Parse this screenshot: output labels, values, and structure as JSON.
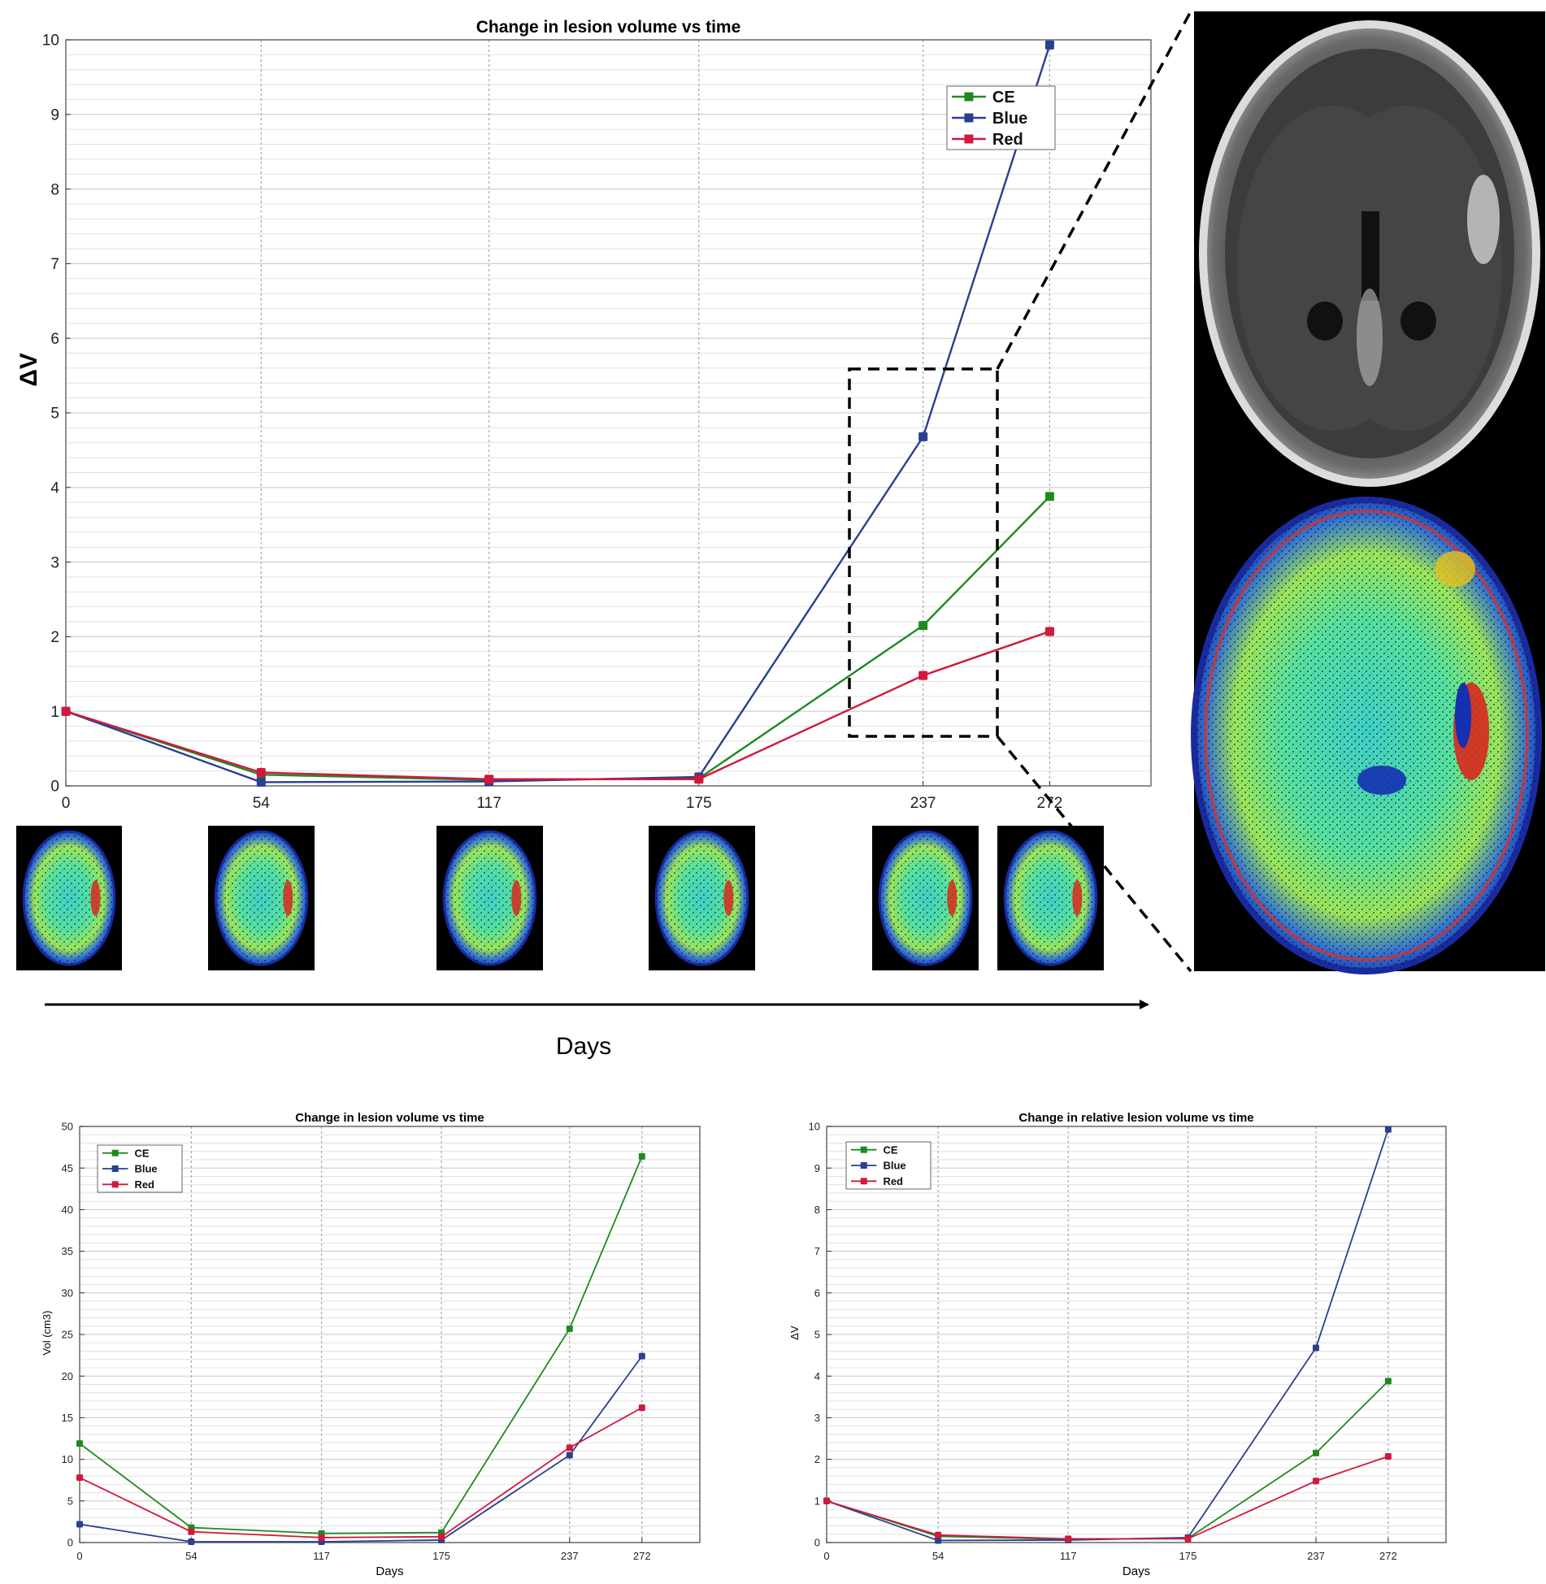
{
  "figure": {
    "timeline_label": "Days",
    "thumbnails_days": [
      0,
      54,
      117,
      175,
      237,
      272
    ]
  },
  "legend": {
    "entries": [
      "CE",
      "Blue",
      "Red"
    ]
  },
  "colors": {
    "CE": "#1e8a1e",
    "Blue": "#2a3f8f",
    "Red": "#d2183c",
    "grid": "#d0d0d0",
    "vgrid": "#a8a8a8"
  },
  "chart_data": [
    {
      "type": "line",
      "title": "Change in lesion volume vs time",
      "xlabel": "",
      "ylabel": "ΔV",
      "x": [
        0,
        54,
        117,
        175,
        237,
        272
      ],
      "xlim": [
        0,
        300
      ],
      "ylim": [
        0,
        10
      ],
      "yticks": [
        0,
        1,
        2,
        3,
        4,
        5,
        6,
        7,
        8,
        9,
        10
      ],
      "grid": true,
      "legend_position": "top-right",
      "series": [
        {
          "name": "CE",
          "values": [
            1.0,
            0.15,
            0.08,
            0.1,
            2.15,
            3.88
          ]
        },
        {
          "name": "Blue",
          "values": [
            1.0,
            0.05,
            0.06,
            0.12,
            4.68,
            9.93
          ]
        },
        {
          "name": "Red",
          "values": [
            1.0,
            0.18,
            0.09,
            0.09,
            1.48,
            2.07
          ]
        }
      ]
    },
    {
      "type": "line",
      "title": "Change in lesion volume vs time",
      "xlabel": "Days",
      "ylabel": "Vol (cm3)",
      "x": [
        0,
        54,
        117,
        175,
        237,
        272
      ],
      "xlim": [
        0,
        300
      ],
      "ylim": [
        0,
        50
      ],
      "yticks": [
        0,
        5,
        10,
        15,
        20,
        25,
        30,
        35,
        40,
        45,
        50
      ],
      "grid": true,
      "legend_position": "top-left",
      "series": [
        {
          "name": "CE",
          "values": [
            11.9,
            1.8,
            1.1,
            1.2,
            25.7,
            46.4
          ]
        },
        {
          "name": "Blue",
          "values": [
            2.2,
            0.1,
            0.1,
            0.3,
            10.5,
            22.4
          ]
        },
        {
          "name": "Red",
          "values": [
            7.8,
            1.3,
            0.6,
            0.7,
            11.4,
            16.2
          ]
        }
      ]
    },
    {
      "type": "line",
      "title": "Change in relative lesion volume vs time",
      "xlabel": "Days",
      "ylabel": "ΔV",
      "x": [
        0,
        54,
        117,
        175,
        237,
        272
      ],
      "xlim": [
        0,
        300
      ],
      "ylim": [
        0,
        10
      ],
      "yticks": [
        0,
        1,
        2,
        3,
        4,
        5,
        6,
        7,
        8,
        9,
        10
      ],
      "grid": true,
      "legend_position": "top-left",
      "series": [
        {
          "name": "CE",
          "values": [
            1.0,
            0.15,
            0.08,
            0.1,
            2.15,
            3.88
          ]
        },
        {
          "name": "Blue",
          "values": [
            1.0,
            0.05,
            0.06,
            0.12,
            4.68,
            9.93
          ]
        },
        {
          "name": "Red",
          "values": [
            1.0,
            0.18,
            0.09,
            0.09,
            1.48,
            2.07
          ]
        }
      ]
    }
  ]
}
